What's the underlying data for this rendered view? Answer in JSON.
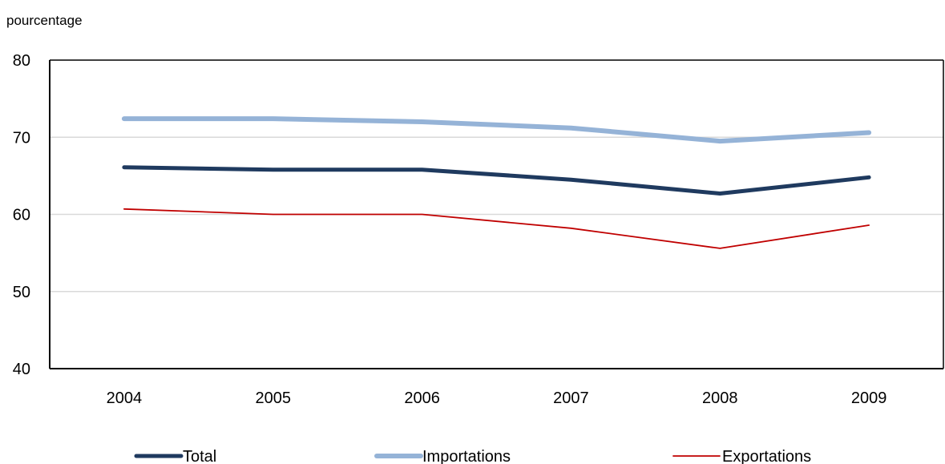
{
  "chart_data": {
    "type": "line",
    "title": "",
    "xlabel": "",
    "ylabel": "pourcentage",
    "categories": [
      "2004",
      "2005",
      "2006",
      "2007",
      "2008",
      "2009"
    ],
    "ylim": [
      40,
      80
    ],
    "yticks": [
      40,
      50,
      60,
      70,
      80
    ],
    "grid": true,
    "legend_position": "bottom",
    "series": [
      {
        "name": "Total",
        "color": "#1f3a5f",
        "values": [
          66.1,
          65.8,
          65.8,
          64.5,
          62.7,
          64.8
        ]
      },
      {
        "name": "Importations",
        "color": "#95b3d7",
        "values": [
          72.4,
          72.4,
          72.0,
          71.2,
          69.5,
          70.6
        ]
      },
      {
        "name": "Exportations",
        "color": "#c00000",
        "values": [
          60.7,
          60.0,
          60.0,
          58.2,
          55.6,
          58.6
        ]
      }
    ]
  }
}
